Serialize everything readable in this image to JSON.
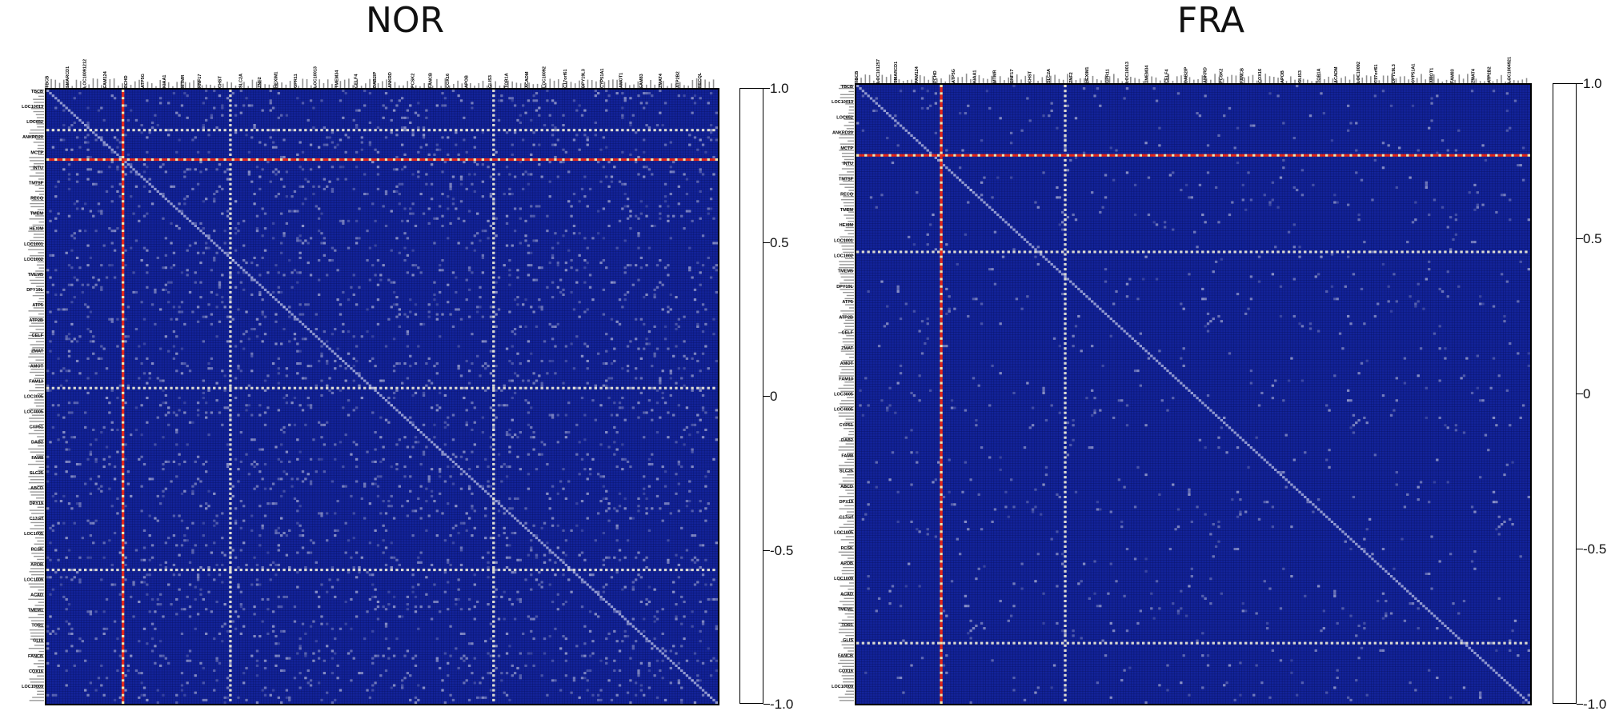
{
  "chart_data": [
    {
      "type": "heatmap",
      "title": "NOR",
      "colorbar": {
        "ticks": [
          "1.0",
          "0.5",
          "0",
          "-0.5",
          "-1.0"
        ],
        "range": [
          -1.0,
          1.0
        ]
      },
      "colors": {
        "low": "#13239a",
        "mid": "#ffffff",
        "high": "#e8281a"
      },
      "grid": true,
      "legend": "right",
      "highlight_rows": [
        28
      ],
      "highlight_cols": [
        28
      ],
      "bright_rows": [
        16,
        121,
        195
      ],
      "bright_cols": [
        68,
        166
      ],
      "row_labels": [
        "TBCB",
        "LOC10013",
        "LOC652",
        "ANKRD20",
        "MCTP",
        "INTU",
        "TM7SF",
        "RECQ",
        "TMEM",
        "HEXIM",
        "LOC1001",
        "LOC1002",
        "TMEM5",
        "DPY19L",
        "ATP5",
        "ATP2B",
        "CELF",
        "ZMAT",
        "AMOT",
        "FAM13",
        "LOC3005",
        "LOC4005",
        "CYP51",
        "DAB2",
        "FAM8",
        "SLC25",
        "ABCD",
        "DPY19",
        "C17orf",
        "LOC1005",
        "PCSK",
        "APOB",
        "LOC1009",
        "ACAD",
        "TMEM1",
        "TOR1",
        "GLIS",
        "FANCB",
        "COX16",
        "LOC10009"
      ],
      "col_labels": [
        "TBCB",
        "SMARCD1",
        "LOC10091212",
        "FAM124",
        "PCHD",
        "ATP5G",
        "KIAA1",
        "MTMR",
        "RNF17",
        "CHST",
        "SLC2A",
        "ZNF2",
        "HEXIM1",
        "GPR11",
        "LOC10013",
        "TMEM34",
        "CELF4",
        "DAB2IP",
        "ANKRD",
        "PCSK2",
        "FANCB",
        "COX16",
        "APOB",
        "GLIS3",
        "TOR1A",
        "ACADM",
        "LOC10092",
        "C17orf61",
        "DPY19L3",
        "CYP51A1",
        "AMOT1",
        "FAM83",
        "ZMAT4",
        "ATP2B2",
        "RECQL"
      ]
    },
    {
      "type": "heatmap",
      "title": "FRA",
      "colorbar": {
        "ticks": [
          "1.0",
          "0.5",
          "0",
          "-0.5",
          "-1.0"
        ],
        "range": [
          -1.0,
          1.0
        ]
      },
      "colors": {
        "low": "#13239a",
        "mid": "#ffffff",
        "high": "#e8281a"
      },
      "grid": true,
      "legend": "right",
      "highlight_rows": [
        28
      ],
      "highlight_cols": [
        31
      ],
      "bright_rows": [
        67,
        225
      ],
      "bright_cols": [
        77
      ],
      "row_labels": [
        "TBCB",
        "LOC10013",
        "LOC652",
        "ANKRD20",
        "MCTP",
        "INTU",
        "TM7SF",
        "RECQ",
        "TMEM",
        "HEXIM",
        "LOC1001",
        "LOC1002",
        "TMEM5",
        "DPY19L",
        "ATP5",
        "ATP2B",
        "CELF",
        "ZMAT",
        "AMOT",
        "FAM13",
        "LOC3005",
        "LOC4005",
        "CYP51",
        "DAB2",
        "FAM8",
        "SLC25",
        "ABCD",
        "DPY19",
        "C17orf",
        "LOC1005",
        "PCSK",
        "APOB",
        "LOC1009",
        "ACAD",
        "TMEM1",
        "TOR1",
        "GLIS",
        "FANCB",
        "COX16",
        "LOC10009"
      ],
      "col_labels": [
        "TBCB",
        "LOC101257",
        "SMARCD1",
        "FAM124",
        "PCHD",
        "ATP5G",
        "KIAA1",
        "MTMR",
        "RNF17",
        "CHST",
        "SLC2A",
        "ZNF2",
        "HEXIM1",
        "GPR11",
        "LOC10013",
        "TMEM34",
        "CELF4",
        "DAB2IP",
        "ANKRD",
        "PCSK2",
        "FANCB",
        "COX16",
        "APOB",
        "GLIS3",
        "TOR1A",
        "ACADM",
        "LOC10092",
        "C17orf61",
        "DPY19L3",
        "CYP51A1",
        "AMOT1",
        "FAM83",
        "ZMAT4",
        "ATP2B2",
        "LOC1004921"
      ]
    }
  ]
}
